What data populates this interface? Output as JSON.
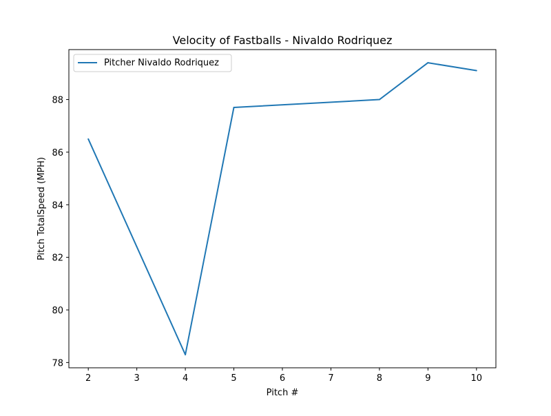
{
  "chart_data": {
    "type": "line",
    "title": "Velocity of Fastballs - Nivaldo Rodriquez",
    "xlabel": "Pitch #",
    "ylabel": "Pitch TotalSpeed (MPH)",
    "xlim": [
      1.6,
      10.4
    ],
    "ylim": [
      77.8,
      89.9
    ],
    "xticks": [
      2,
      3,
      4,
      5,
      6,
      7,
      8,
      9,
      10
    ],
    "yticks": [
      78,
      80,
      82,
      84,
      86,
      88
    ],
    "grid": false,
    "legend_position": "top-left",
    "series": [
      {
        "name": "Pitcher Nivaldo Rodriquez",
        "color": "#1f77b4",
        "x": [
          2,
          4,
          5,
          8,
          9,
          10
        ],
        "y": [
          86.5,
          78.3,
          87.7,
          88.0,
          89.4,
          89.1
        ]
      }
    ]
  }
}
